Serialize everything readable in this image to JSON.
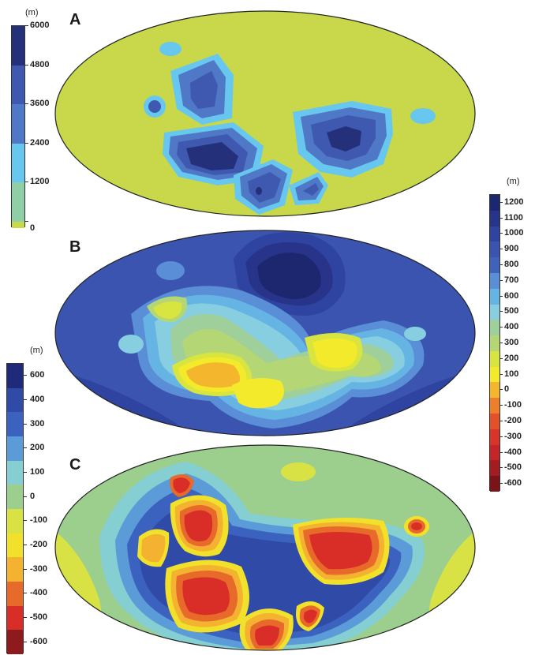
{
  "panels": [
    {
      "label": "A"
    },
    {
      "label": "B"
    },
    {
      "label": "C"
    }
  ],
  "legends": {
    "a": {
      "unit": "(m)",
      "ticks": [
        "6000",
        "4800",
        "3600",
        "2400",
        "1200",
        "0"
      ],
      "colors": [
        "#24307a",
        "#3f58b0",
        "#4f78c6",
        "#67c7ee",
        "#8ecfa6",
        "#c8d84a"
      ]
    },
    "b": {
      "unit": "(m)",
      "ticks": [
        "1200",
        "1100",
        "1000",
        "900",
        "800",
        "700",
        "600",
        "500",
        "400",
        "300",
        "200",
        "100",
        "0",
        "-100",
        "-200",
        "-300",
        "-400",
        "-500",
        "-600"
      ],
      "colors": [
        "#1c2770",
        "#27348a",
        "#2e44a0",
        "#3a54b0",
        "#3f62bc",
        "#5a8ed6",
        "#66b4e4",
        "#87cfe0",
        "#9fcf9a",
        "#b5d675",
        "#d8e440",
        "#f2ea2a",
        "#f3b62d",
        "#ed7e2b",
        "#e3512b",
        "#d93429",
        "#c52428",
        "#a31c22",
        "#7a1418"
      ]
    },
    "c": {
      "unit": "(m)",
      "ticks": [
        "600",
        "400",
        "300",
        "200",
        "100",
        "0",
        "-100",
        "-200",
        "-300",
        "-400",
        "-500",
        "-600"
      ],
      "colors": [
        "#1f2b7a",
        "#304aa8",
        "#3b62bf",
        "#5b9bd8",
        "#85cfd2",
        "#9cce8e",
        "#d8e244",
        "#f2e12a",
        "#f3b330",
        "#e86a2a",
        "#d92e28",
        "#8e1a1e"
      ]
    }
  }
}
